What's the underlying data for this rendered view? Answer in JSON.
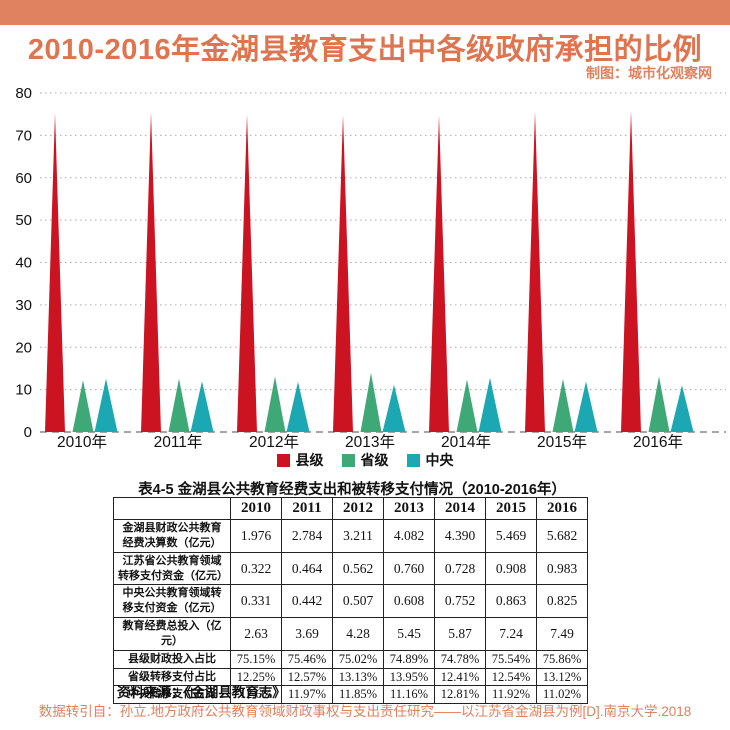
{
  "header": {
    "title": "2010-2016年金湖县教育支出中各级政府承担的比例",
    "credit": "制图：城市化观察网"
  },
  "colors": {
    "accent_salmon": "#E0815F",
    "title_orange": "#DE7450",
    "county_red": "#CC1322",
    "province_green": "#3FA877",
    "central_teal": "#1BA8B2",
    "grid_gray": "#AAAAAA",
    "baseline_gray": "#888888"
  },
  "chart_data": {
    "type": "bar",
    "subtype": "triangle-spike",
    "title": "2010-2016年金湖县教育支出中各级政府承担的比例",
    "categories": [
      "2010年",
      "2011年",
      "2012年",
      "2013年",
      "2014年",
      "2015年",
      "2016年"
    ],
    "series": [
      {
        "name": "县级",
        "color": "#CC1322",
        "values": [
          75.15,
          75.46,
          75.02,
          74.89,
          74.78,
          75.54,
          75.86
        ]
      },
      {
        "name": "省级",
        "color": "#3FA877",
        "values": [
          12.25,
          12.57,
          13.13,
          13.95,
          12.41,
          12.54,
          13.12
        ]
      },
      {
        "name": "中央",
        "color": "#1BA8B2",
        "values": [
          12.6,
          11.97,
          11.85,
          11.16,
          12.81,
          11.92,
          11.02
        ]
      }
    ],
    "unit": "%",
    "xlabel": "",
    "ylabel": "",
    "ylim": [
      0,
      80
    ],
    "ytick_step": 10,
    "grid": true,
    "legend_position": "bottom"
  },
  "table": {
    "title": "表4-5  金湖县公共教育经费支出和被转移支付情况（2010-2016年）",
    "col_headers": [
      "2010",
      "2011",
      "2012",
      "2013",
      "2014",
      "2015",
      "2016"
    ],
    "rows": [
      {
        "label": "金湖县财政公共教育经费决算数（亿元）",
        "tall": true,
        "values": [
          "1.976",
          "2.784",
          "3.211",
          "4.082",
          "4.390",
          "5.469",
          "5.682"
        ]
      },
      {
        "label": "江苏省公共教育领域转移支付资金（亿元）",
        "tall": true,
        "values": [
          "0.322",
          "0.464",
          "0.562",
          "0.760",
          "0.728",
          "0.908",
          "0.983"
        ]
      },
      {
        "label": "中央公共教育领域转移支付资金（亿元）",
        "tall": true,
        "values": [
          "0.331",
          "0.442",
          "0.507",
          "0.608",
          "0.752",
          "0.863",
          "0.825"
        ]
      },
      {
        "label": "教育经费总投入（亿元）",
        "tall": true,
        "values": [
          "2.63",
          "3.69",
          "4.28",
          "5.45",
          "5.87",
          "7.24",
          "7.49"
        ]
      },
      {
        "label": "县级财政投入占比",
        "tall": false,
        "values": [
          "75.15%",
          "75.46%",
          "75.02%",
          "74.89%",
          "74.78%",
          "75.54%",
          "75.86%"
        ]
      },
      {
        "label": "省级转移支付占比",
        "tall": false,
        "values": [
          "12.25%",
          "12.57%",
          "13.13%",
          "13.95%",
          "12.41%",
          "12.54%",
          "13.12%"
        ]
      },
      {
        "label": "中央转移支付占比",
        "tall": false,
        "values": [
          "12.6%",
          "11.97%",
          "11.85%",
          "11.16%",
          "12.81%",
          "11.92%",
          "11.02%"
        ]
      }
    ],
    "source": "资料来源：《金湖县教育志》"
  },
  "footer": {
    "caption": "数据转引自：孙立.地方政府公共教育领域财政事权与支出责任研究——以江苏省金湖县为例[D].南京大学.2018"
  }
}
